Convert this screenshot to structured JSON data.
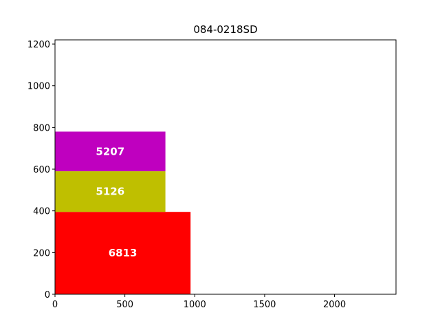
{
  "chart_data": {
    "type": "bar",
    "title": "084-0218SD",
    "xlabel": "",
    "ylabel": "",
    "xlim": [
      0,
      2440
    ],
    "ylim": [
      0,
      1220
    ],
    "xticks": [
      0,
      500,
      1000,
      1500,
      2000
    ],
    "yticks": [
      0,
      200,
      400,
      600,
      800,
      1000,
      1200
    ],
    "grid": false,
    "rects": [
      {
        "label": "6813",
        "x": 0,
        "y": 0,
        "width": 970,
        "height": 395,
        "color": "#ff0000"
      },
      {
        "label": "5126",
        "x": 0,
        "y": 395,
        "width": 790,
        "height": 195,
        "color": "#bfbf00"
      },
      {
        "label": "5207",
        "x": 0,
        "y": 590,
        "width": 790,
        "height": 190,
        "color": "#bf00bf"
      }
    ]
  }
}
